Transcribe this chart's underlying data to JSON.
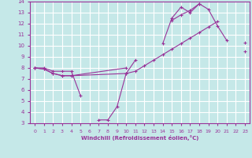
{
  "xlabel": "Windchill (Refroidissement éolien,°C)",
  "xlim": [
    -0.5,
    23.5
  ],
  "ylim": [
    3,
    14
  ],
  "xticks": [
    0,
    1,
    2,
    3,
    4,
    5,
    6,
    7,
    8,
    9,
    10,
    11,
    12,
    13,
    14,
    15,
    16,
    17,
    18,
    19,
    20,
    21,
    22,
    23
  ],
  "yticks": [
    3,
    4,
    5,
    6,
    7,
    8,
    9,
    10,
    11,
    12,
    13,
    14
  ],
  "bg_color": "#c5e8e8",
  "grid_color": "#ffffff",
  "line_color": "#993399",
  "lines": [
    {
      "x": [
        0,
        1,
        2,
        3,
        4,
        5,
        6,
        7,
        8,
        9,
        10,
        11,
        12,
        13,
        14,
        15,
        16,
        17,
        18,
        19,
        20,
        21,
        22,
        23
      ],
      "y": [
        8,
        8,
        7.7,
        7.7,
        7.7,
        5.5,
        null,
        3.3,
        3.3,
        4.5,
        7.5,
        8.7,
        null,
        null,
        10.2,
        12.5,
        13.5,
        13.0,
        13.8,
        null,
        null,
        null,
        null,
        null
      ]
    },
    {
      "x": [
        0,
        1,
        2,
        3,
        4,
        10,
        11,
        12,
        13,
        14,
        15,
        16,
        17,
        18,
        19,
        20,
        21,
        22,
        23
      ],
      "y": [
        8,
        7.9,
        7.5,
        7.3,
        7.3,
        7.5,
        7.7,
        8.2,
        8.7,
        9.2,
        9.7,
        10.2,
        10.7,
        11.2,
        11.7,
        12.2,
        null,
        null,
        9.5
      ]
    },
    {
      "x": [
        0,
        1,
        2,
        3,
        4,
        10,
        11,
        12,
        13,
        14,
        15,
        16,
        17,
        18,
        19,
        20,
        21,
        22,
        23
      ],
      "y": [
        8,
        7.9,
        7.5,
        7.3,
        7.3,
        8.0,
        null,
        null,
        null,
        null,
        12.3,
        12.8,
        13.2,
        13.8,
        13.3,
        11.8,
        10.5,
        null,
        10.3
      ]
    }
  ]
}
